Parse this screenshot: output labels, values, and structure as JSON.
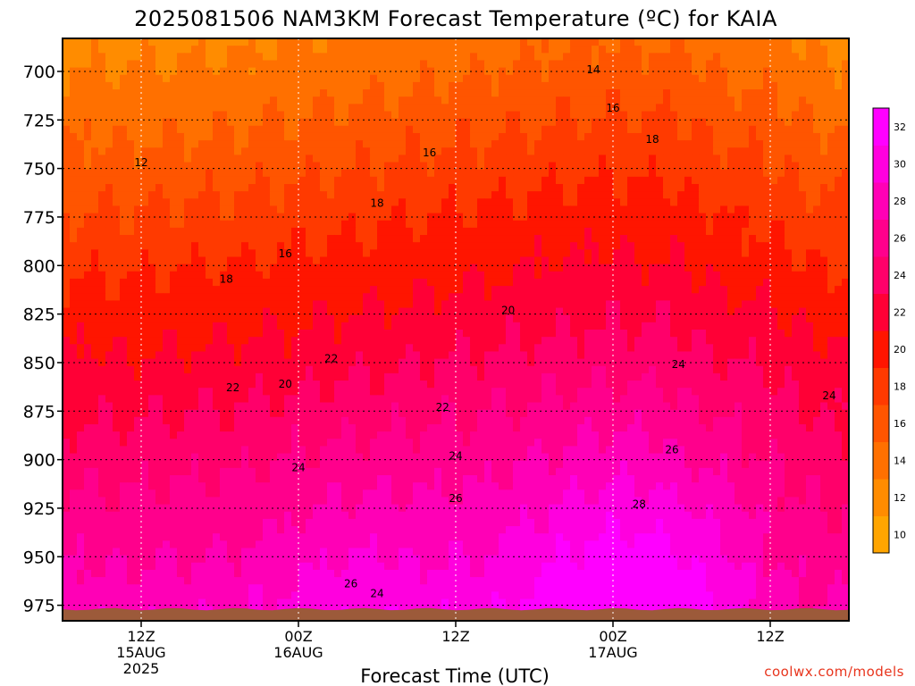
{
  "title": "2025081506 NAM3KM Forecast Temperature (ºC) for KAIA",
  "credit": "coolwx.com/models",
  "chart_data": {
    "type": "heatmap",
    "title": "2025081506 NAM3KM Forecast Temperature (ºC) for KAIA",
    "xlabel": "Forecast Time (UTC)",
    "ylabel": "",
    "y_axis_ticks": [
      700,
      725,
      750,
      775,
      800,
      825,
      850,
      875,
      900,
      925,
      950,
      975
    ],
    "y_range_hpa": [
      683,
      983
    ],
    "y_direction": "pressure increasing downward",
    "x_ticks": [
      {
        "line1": "12Z",
        "line2": "15AUG",
        "line3": "2025",
        "hour": 6
      },
      {
        "line1": "00Z",
        "line2": "16AUG",
        "line3": "",
        "hour": 18
      },
      {
        "line1": "12Z",
        "line2": "",
        "line3": "",
        "hour": 30
      },
      {
        "line1": "00Z",
        "line2": "17AUG",
        "line3": "",
        "hour": 42
      },
      {
        "line1": "12Z",
        "line2": "",
        "line3": "",
        "hour": 54
      }
    ],
    "x_range_hours_from_init": [
      0,
      60
    ],
    "grid": true,
    "contour_interval": 2,
    "contour_labels": [
      {
        "v": "14",
        "h": 40.5,
        "p": 699
      },
      {
        "v": "16",
        "h": 42,
        "p": 719
      },
      {
        "v": "18",
        "h": 45,
        "p": 735
      },
      {
        "v": "16",
        "h": 28,
        "p": 742
      },
      {
        "v": "12",
        "h": 6,
        "p": 747
      },
      {
        "v": "18",
        "h": 24,
        "p": 768
      },
      {
        "v": "16",
        "h": 17,
        "p": 794
      },
      {
        "v": "18",
        "h": 12.5,
        "p": 807
      },
      {
        "v": "20",
        "h": 34,
        "p": 823
      },
      {
        "v": "22",
        "h": 20.5,
        "p": 848
      },
      {
        "v": "20",
        "h": 17,
        "p": 861
      },
      {
        "v": "22",
        "h": 13,
        "p": 863
      },
      {
        "v": "24",
        "h": 47,
        "p": 851
      },
      {
        "v": "24",
        "h": 58.5,
        "p": 867
      },
      {
        "v": "22",
        "h": 29,
        "p": 873
      },
      {
        "v": "26",
        "h": 46.5,
        "p": 895
      },
      {
        "v": "24",
        "h": 30,
        "p": 898
      },
      {
        "v": "24",
        "h": 18,
        "p": 904
      },
      {
        "v": "28",
        "h": 44,
        "p": 923
      },
      {
        "v": "26",
        "h": 30,
        "p": 920
      },
      {
        "v": "26",
        "h": 22,
        "p": 964
      },
      {
        "v": "24",
        "h": 24,
        "p": 969
      }
    ],
    "colorbar": {
      "labels": [
        "32",
        "30",
        "28",
        "26",
        "24",
        "22",
        "20",
        "18",
        "16",
        "14",
        "12",
        "10"
      ],
      "min": 9,
      "max": 33,
      "colors": [
        "#ffa500",
        "#ff8c00",
        "#ff7000",
        "#ff5500",
        "#ff3a00",
        "#ff1500",
        "#ff0036",
        "#ff006a",
        "#ff008c",
        "#ff00b6",
        "#ff00de",
        "#ff00ff"
      ]
    }
  }
}
